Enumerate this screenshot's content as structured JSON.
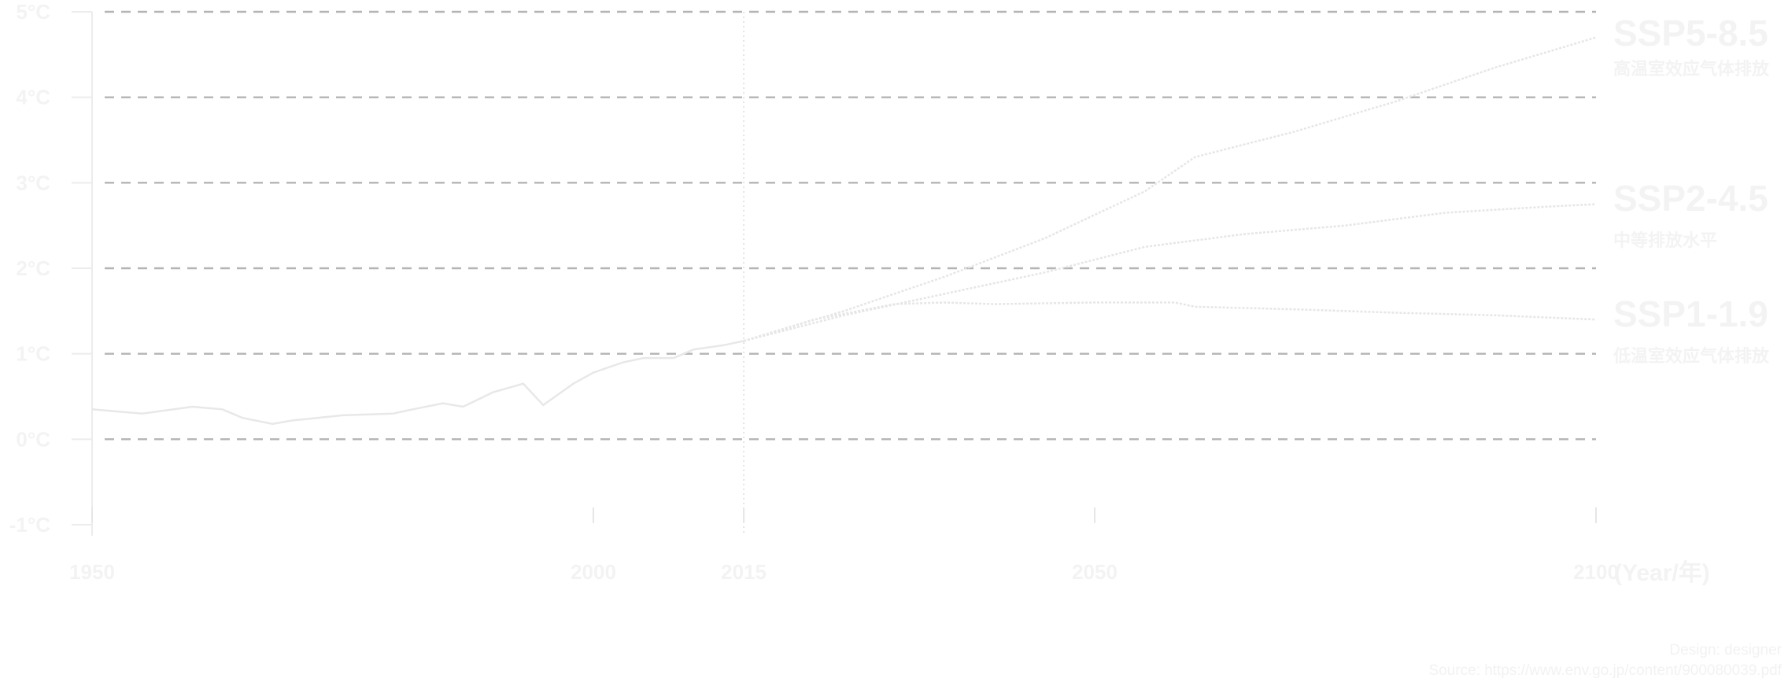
{
  "chart_data": {
    "type": "line",
    "x_unit_label": "(Year/年)",
    "x_ticks": [
      "1950",
      "2000",
      "2015",
      "2050",
      "2100"
    ],
    "y_ticks": [
      "5°C",
      "4°C",
      "3°C",
      "2°C",
      "1°C",
      "0°C",
      "-1°C"
    ],
    "ylim": [
      -1,
      5
    ],
    "xlim": [
      1950,
      2100
    ],
    "grid": "horizontal dashed",
    "historical": {
      "x": [
        1950,
        1955,
        1960,
        1963,
        1965,
        1968,
        1970,
        1975,
        1980,
        1982,
        1985,
        1987,
        1990,
        1993,
        1995,
        1998,
        2000,
        2003,
        2005,
        2008,
        2010,
        2013,
        2015
      ],
      "y": [
        0.35,
        0.3,
        0.38,
        0.35,
        0.25,
        0.18,
        0.22,
        0.28,
        0.3,
        0.35,
        0.42,
        0.38,
        0.55,
        0.65,
        0.4,
        0.65,
        0.78,
        0.9,
        0.95,
        0.95,
        1.05,
        1.1,
        1.15
      ]
    },
    "series": [
      {
        "name": "SSP5-8.5",
        "subtitle": "高温室效应气体排放",
        "x": [
          2015,
          2025,
          2035,
          2045,
          2055,
          2060,
          2070,
          2080,
          2090,
          2100
        ],
        "y": [
          1.15,
          1.5,
          1.9,
          2.35,
          2.9,
          3.3,
          3.6,
          3.95,
          4.35,
          4.7
        ]
      },
      {
        "name": "SSP2-4.5",
        "subtitle": "中等排放水平",
        "x": [
          2015,
          2025,
          2035,
          2045,
          2055,
          2065,
          2075,
          2085,
          2095,
          2100
        ],
        "y": [
          1.15,
          1.45,
          1.7,
          1.95,
          2.25,
          2.4,
          2.5,
          2.65,
          2.72,
          2.75
        ]
      },
      {
        "name": "SSP1-1.9",
        "subtitle": "低温室效应气体排放",
        "x": [
          2015,
          2022,
          2030,
          2035,
          2040,
          2050,
          2058,
          2060,
          2070,
          2080,
          2090,
          2100
        ],
        "y": [
          1.15,
          1.4,
          1.58,
          1.6,
          1.58,
          1.6,
          1.6,
          1.55,
          1.52,
          1.48,
          1.45,
          1.4
        ]
      }
    ]
  },
  "credits": {
    "design": "Design: designer",
    "source": "Source: https://www.env.go.jp/content/900080039.pdf"
  }
}
